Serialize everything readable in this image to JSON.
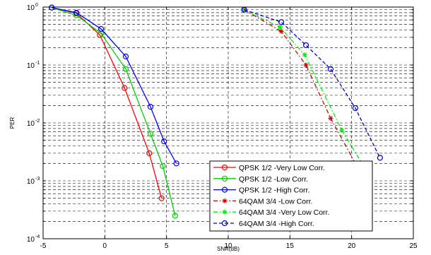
{
  "chart_data": {
    "type": "line",
    "title": "",
    "xlabel": "SNR(dB)",
    "ylabel": "PER",
    "xlim": [
      -5,
      25
    ],
    "ylim": [
      0.0001,
      1
    ],
    "yscale": "log",
    "grid": true,
    "legend_position": "bottom-right",
    "x_ticks": [
      "-5",
      "0",
      "5",
      "10",
      "15",
      "20",
      "25"
    ],
    "y_ticks": [
      {
        "base": "10",
        "exp": "-4"
      },
      {
        "base": "10",
        "exp": "-3"
      },
      {
        "base": "10",
        "exp": "-2"
      },
      {
        "base": "10",
        "exp": "-1"
      },
      {
        "base": "10",
        "exp": "0"
      }
    ],
    "series": [
      {
        "name": "QPSK 1/2 -Very Low Corr.",
        "color": "#ff0000",
        "line": "solid",
        "marker": "circle",
        "x": [
          -4.3,
          -2.3,
          -0.4,
          1.6,
          3.6,
          4.6
        ],
        "y": [
          0.98,
          0.78,
          0.33,
          0.04,
          0.003,
          0.0005
        ]
      },
      {
        "name": "QPSK 1/2 -Low Corr.",
        "color": "#00cc00",
        "line": "solid",
        "marker": "circle",
        "x": [
          -4.3,
          -2.3,
          -0.3,
          1.7,
          3.7,
          4.7,
          5.7
        ],
        "y": [
          0.98,
          0.72,
          0.35,
          0.085,
          0.0065,
          0.0018,
          0.00025
        ]
      },
      {
        "name": "QPSK 1/2 -High Corr.",
        "color": "#0000ff",
        "line": "solid",
        "marker": "circle",
        "x": [
          -4.3,
          -2.3,
          -0.3,
          1.7,
          3.7,
          4.8,
          5.8
        ],
        "y": [
          0.98,
          0.8,
          0.42,
          0.14,
          0.019,
          0.0048,
          0.002
        ]
      },
      {
        "name": "64QAM 3/4 -Low Corr.",
        "color": "#cc0000",
        "line": "dashdot",
        "marker": "star",
        "x": [
          11.3,
          14.3,
          16.3,
          18.3,
          20.3
        ],
        "y": [
          0.9,
          0.38,
          0.1,
          0.012,
          0.002
        ]
      },
      {
        "name": "64QAM 3/4 -Very Low Corr.",
        "color": "#00ee00",
        "line": "dashdot",
        "marker": "star",
        "x": [
          11.2,
          14.2,
          16.2,
          19.2,
          21.2
        ],
        "y": [
          0.9,
          0.45,
          0.15,
          0.0075,
          0.0015
        ]
      },
      {
        "name": "64QAM 3/4 -High Corr.",
        "color": "#0000cc",
        "line": "dashed",
        "marker": "circle",
        "x": [
          11.3,
          14.3,
          16.3,
          18.3,
          20.3,
          22.3
        ],
        "y": [
          0.9,
          0.55,
          0.22,
          0.085,
          0.018,
          0.0025
        ]
      }
    ]
  }
}
